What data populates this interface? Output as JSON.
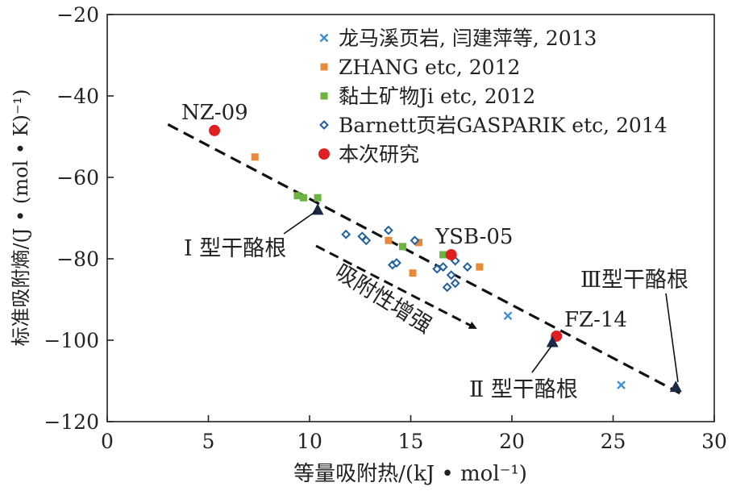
{
  "chart_data": {
    "type": "scatter",
    "xlabel": "等量吸附热/(kJ • mol⁻¹)",
    "ylabel": "标准吸附熵/(J • (mol • K)⁻¹)",
    "xlim": [
      0,
      30
    ],
    "ylim": [
      -120,
      -20
    ],
    "x_ticks": [
      "0",
      "5",
      "10",
      "15",
      "20",
      "25",
      "30"
    ],
    "y_ticks": [
      "-20",
      "-40",
      "-60",
      "-80",
      "-100",
      "-120"
    ],
    "grid": false,
    "legend_position": "top-right",
    "series": [
      {
        "name": "龙马溪页岩, 闫建萍等, 2013",
        "marker": "x",
        "color": "#3f8fd0",
        "points": [
          [
            19.8,
            -94
          ],
          [
            25.4,
            -111
          ]
        ]
      },
      {
        "name": "ZHANG etc, 2012",
        "marker": "square",
        "color": "#e8893a",
        "points": [
          [
            7.3,
            -55
          ],
          [
            13.9,
            -75.5
          ],
          [
            15.1,
            -83.5
          ],
          [
            15.4,
            -76
          ],
          [
            18.4,
            -82
          ]
        ]
      },
      {
        "name": "黏土矿物Ji etc, 2012",
        "marker": "square",
        "color": "#6db33f",
        "points": [
          [
            9.4,
            -64.5
          ],
          [
            9.7,
            -65
          ],
          [
            10.4,
            -65
          ],
          [
            14.6,
            -77
          ],
          [
            16.6,
            -79
          ]
        ]
      },
      {
        "name": "Barnett页岩GASPARIK etc, 2014",
        "marker": "diamond",
        "color": "#1f5f9e",
        "points": [
          [
            11.8,
            -74
          ],
          [
            12.6,
            -74.5
          ],
          [
            12.8,
            -75.5
          ],
          [
            13.9,
            -73
          ],
          [
            14.1,
            -81.5
          ],
          [
            14.3,
            -81
          ],
          [
            15.2,
            -75.5
          ],
          [
            16.3,
            -82.5
          ],
          [
            16.6,
            -82
          ],
          [
            16.8,
            -87
          ],
          [
            17.0,
            -84
          ],
          [
            17.2,
            -80.5
          ],
          [
            17.2,
            -86
          ],
          [
            17.8,
            -82
          ]
        ]
      },
      {
        "name": "本次研究",
        "marker": "circle",
        "color": "#e02020",
        "points": [
          [
            5.3,
            -48.5
          ],
          [
            17.0,
            -79
          ],
          [
            22.2,
            -99
          ]
        ]
      }
    ],
    "trendline": [
      [
        3.0,
        -47
      ],
      [
        28.3,
        -113
      ]
    ],
    "kerogen_points": [
      {
        "label": "Ⅰ 型干酪根",
        "x": 10.4,
        "y": -68
      },
      {
        "label": "Ⅱ 型干酪根",
        "x": 22.0,
        "y": -100.5
      },
      {
        "label": "Ⅲ型干酪根",
        "x": 28.1,
        "y": -111.5
      }
    ],
    "annotations": [
      {
        "key": "nz09",
        "text": "NZ-09"
      },
      {
        "key": "ysb05",
        "text": "YSB-05"
      },
      {
        "key": "fz14",
        "text": "FZ-14"
      },
      {
        "key": "trend",
        "text": "吸附性增强"
      }
    ]
  }
}
